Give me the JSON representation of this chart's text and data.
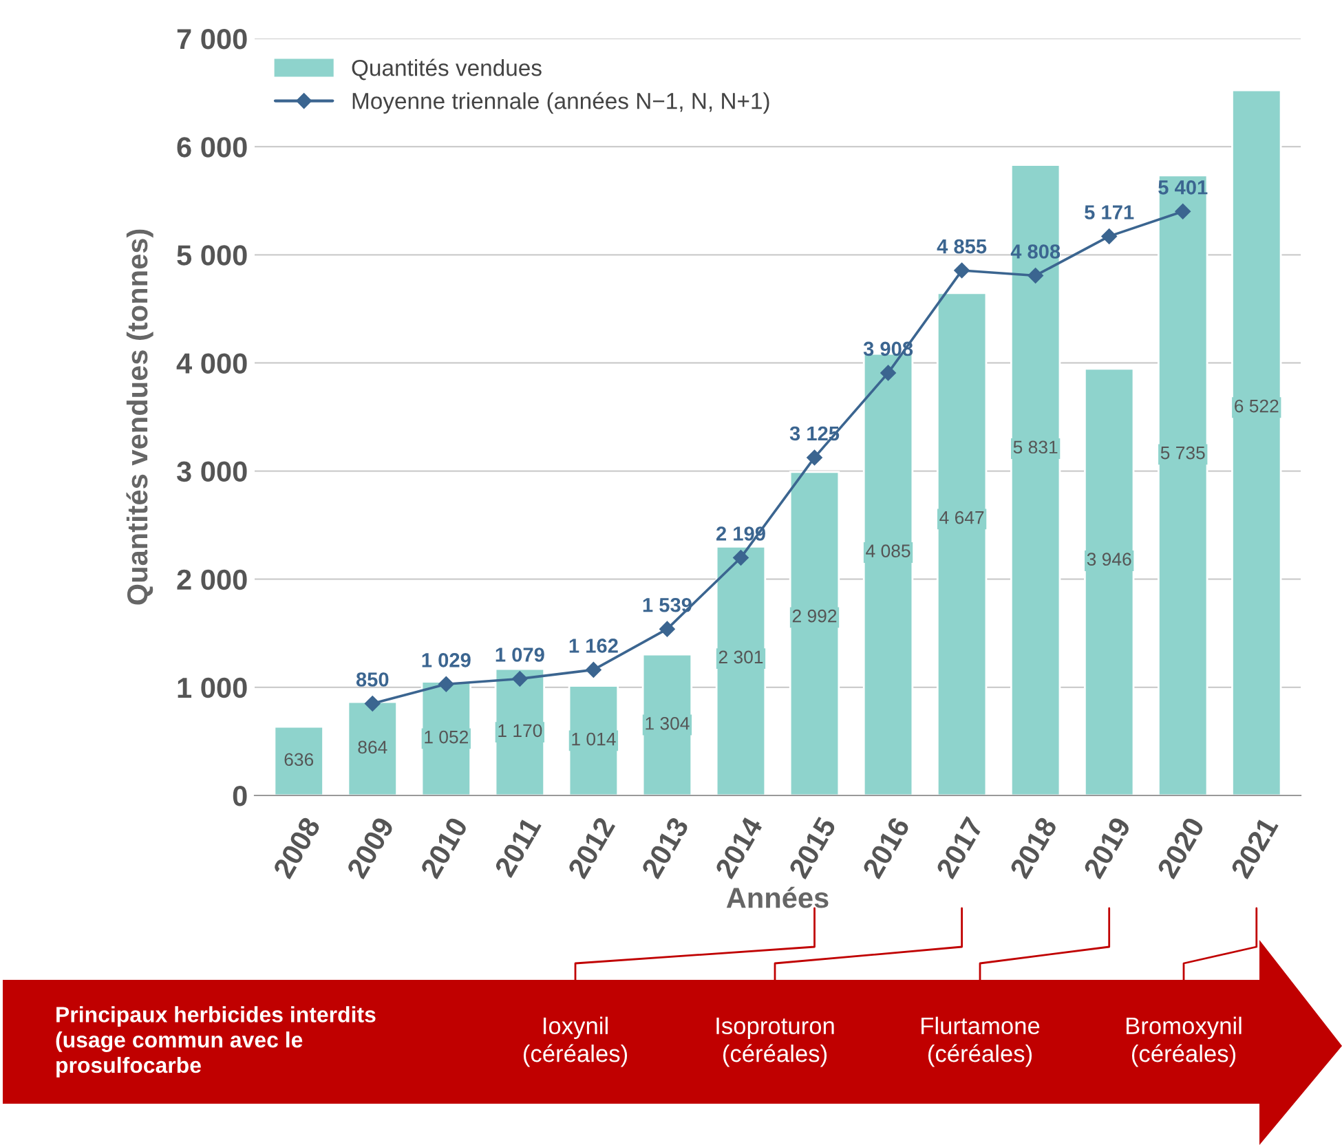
{
  "chart_data": {
    "type": "bar",
    "xlabel": "Années",
    "ylabel": "Quantités vendues (tonnes)",
    "categories": [
      "2008",
      "2009",
      "2010",
      "2011",
      "2012",
      "2013",
      "2014",
      "2015",
      "2016",
      "2017",
      "2018",
      "2019",
      "2020",
      "2021"
    ],
    "series": [
      {
        "name": "Quantités vendues",
        "color": "#8ed3cc",
        "values": [
          636,
          864,
          1052,
          1170,
          1014,
          1304,
          2301,
          2992,
          4085,
          4647,
          5831,
          3946,
          5735,
          6522
        ],
        "value_labels": [
          "636",
          "864",
          "1 052",
          "1 170",
          "1 014",
          "1 304",
          "2 301",
          "2 992",
          "4 085",
          "4 647",
          "5 831",
          "3 946",
          "5 735",
          "6 522"
        ]
      },
      {
        "name": "Moyenne triennale (années N−1, N, N+1)",
        "type": "line",
        "color": "#3b6590",
        "marker": "diamond",
        "values": [
          null,
          850,
          1029,
          1079,
          1162,
          1539,
          2199,
          3125,
          3908,
          4855,
          4808,
          5171,
          5401,
          null
        ],
        "value_labels": [
          null,
          "850",
          "1 029",
          "1 079",
          "1 162",
          "1 539",
          "2 199",
          "3 125",
          "3 908",
          "4 855",
          "4 808",
          "5 171",
          "5 401",
          null
        ]
      }
    ],
    "ylim": [
      0,
      7000
    ],
    "yticks": [
      {
        "value": 0,
        "label": "0"
      },
      {
        "value": 1000,
        "label": "1 000"
      },
      {
        "value": 2000,
        "label": "2 000"
      },
      {
        "value": 3000,
        "label": "3 000"
      },
      {
        "value": 4000,
        "label": "4 000"
      },
      {
        "value": 5000,
        "label": "5 000"
      },
      {
        "value": 6000,
        "label": "6 000"
      },
      {
        "value": 7000,
        "label": "7 000"
      }
    ],
    "grid": "y",
    "legend": "top left",
    "annotations": [
      "Principaux herbicides interdits\n(usage commun avec le\nprosulfocarbe",
      "Ioxynil\n(céréales)",
      "Isoproturon\n(céréales)",
      "Flurtamone\n(céréales)",
      "Bromoxynil\n(céréales)"
    ]
  }
}
